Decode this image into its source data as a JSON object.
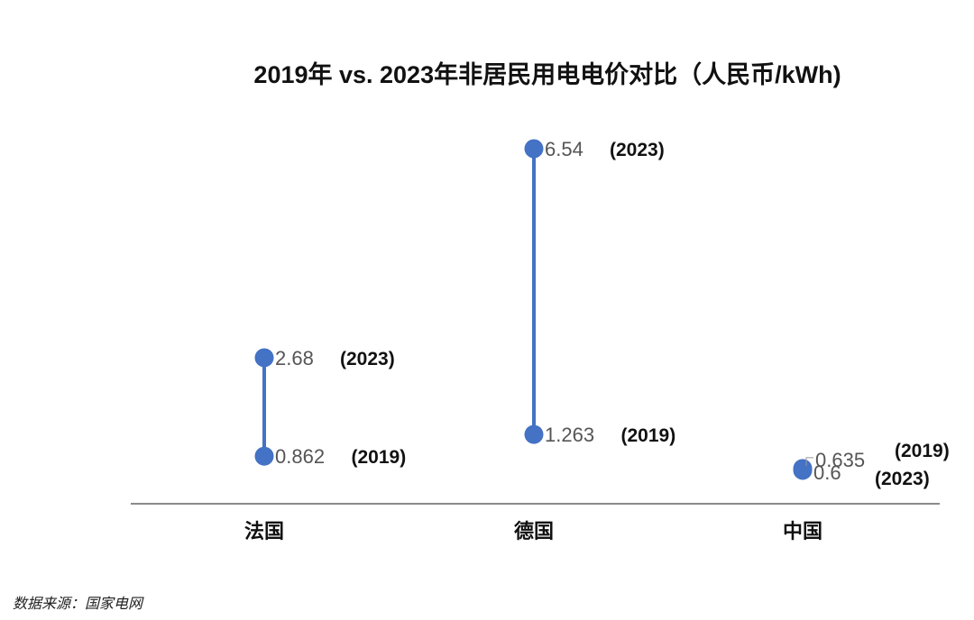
{
  "chart_data": {
    "type": "dumbbell",
    "title": "2019年 vs. 2023年非居民用电电价对比（人民币/kWh)",
    "categories": [
      "法国",
      "德国",
      "中国"
    ],
    "series": [
      {
        "name": "(2019)",
        "values": [
          0.862,
          1.263,
          0.635
        ]
      },
      {
        "name": "(2023)",
        "values": [
          2.68,
          6.54,
          0.6
        ]
      }
    ],
    "value_labels": {
      "2019": [
        "0.862",
        "1.263",
        "0.635"
      ],
      "2023": [
        "2.68",
        "6.54",
        "0.6"
      ]
    },
    "year_labels": {
      "2019": "(2019)",
      "2023": "(2023)"
    },
    "color": "#4472C4",
    "ylim": [
      0,
      7.4
    ],
    "grid": false,
    "legend": "none"
  },
  "source": "数据来源：国家电网"
}
